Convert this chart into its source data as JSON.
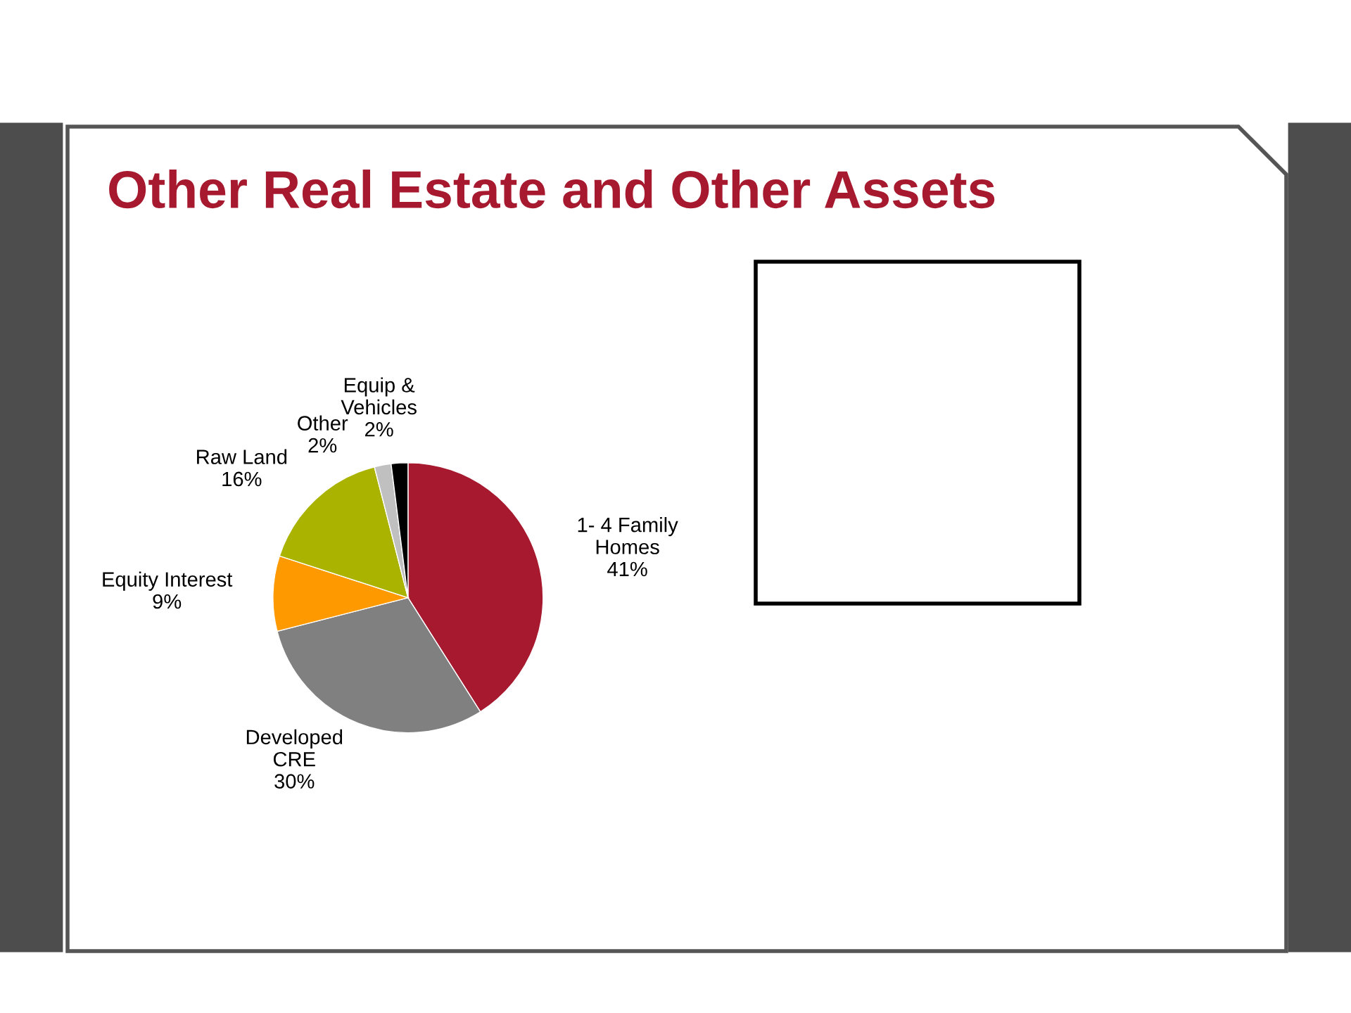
{
  "chart_data": {
    "type": "pie",
    "title": "Other Real Estate and Other Assets",
    "categories": [
      "1- 4 Family\nHomes",
      "Developed\nCRE",
      "Equity Interest",
      "Raw Land",
      "Other",
      "Equip &\nVehicles"
    ],
    "values": [
      41,
      30,
      9,
      16,
      2,
      2
    ],
    "value_labels": [
      "41%",
      "30%",
      "9%",
      "16%",
      "2%",
      "2%"
    ],
    "colors": [
      "#a6192e",
      "#808080",
      "#ff9900",
      "#aab400",
      "#c0c0c0",
      "#000000"
    ]
  }
}
